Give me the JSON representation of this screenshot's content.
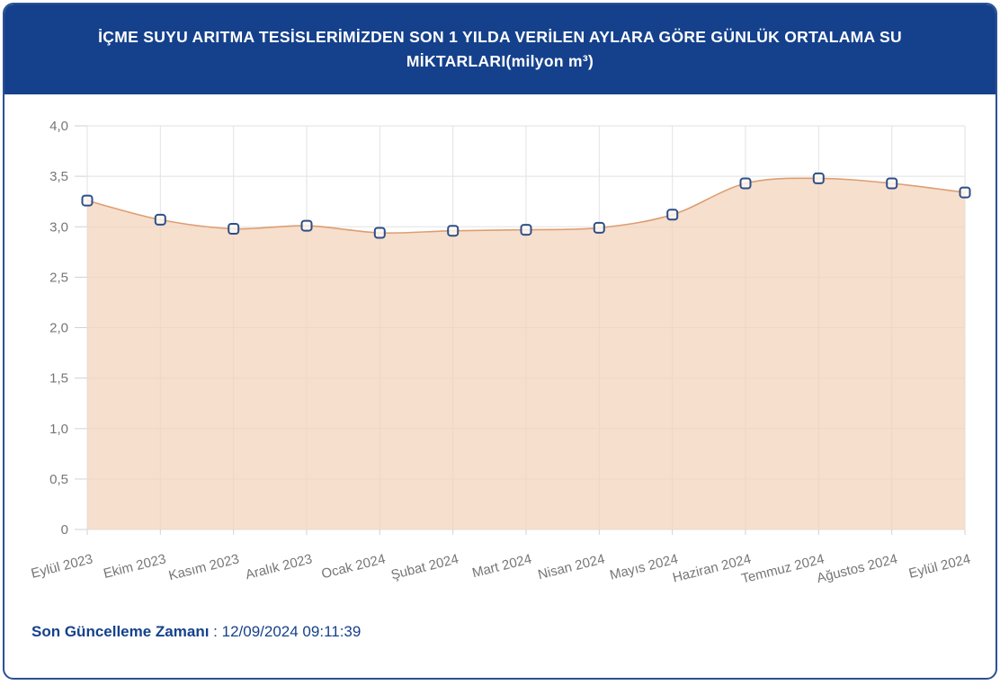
{
  "header": {
    "title": "İÇME SUYU ARITMA TESİSLERİMİZDEN SON 1 YILDA VERİLEN AYLARA GÖRE GÜNLÜK ORTALAMA SU MİKTARLARI(milyon m³)"
  },
  "chart_data": {
    "type": "area",
    "title": "İÇME SUYU ARITMA TESİSLERİMİZDEN SON 1 YILDA VERİLEN AYLARA GÖRE GÜNLÜK ORTALAMA SU MİKTARLARI(milyon m³)",
    "unit": "milyon m³",
    "categories": [
      "Eylül 2023",
      "Ekim 2023",
      "Kasım 2023",
      "Aralık 2023",
      "Ocak 2024",
      "Şubat 2024",
      "Mart 2024",
      "Nisan 2024",
      "Mayıs 2024",
      "Haziran 2024",
      "Temmuz 2024",
      "Ağustos 2024",
      "Eylül 2024"
    ],
    "values": [
      3.26,
      3.07,
      2.98,
      3.01,
      2.94,
      2.96,
      2.97,
      2.99,
      3.12,
      3.43,
      3.48,
      3.43,
      3.34
    ],
    "ylim": [
      0,
      4
    ],
    "y_ticks": [
      {
        "value": 0,
        "label": "0"
      },
      {
        "value": 0.5,
        "label": "0,5"
      },
      {
        "value": 1,
        "label": "1,0"
      },
      {
        "value": 1.5,
        "label": "1,5"
      },
      {
        "value": 2,
        "label": "2,0"
      },
      {
        "value": 2.5,
        "label": "2,5"
      },
      {
        "value": 3,
        "label": "3,0"
      },
      {
        "value": 3.5,
        "label": "3,5"
      },
      {
        "value": 4,
        "label": "4,0"
      }
    ],
    "xlabel": "",
    "ylabel": "",
    "grid": true,
    "legend": "none",
    "marker": "square"
  },
  "footer": {
    "label": "Son Güncelleme Zamanı",
    "separator": " : ",
    "value": "12/09/2024 09:11:39"
  },
  "colors": {
    "header_bg": "#15418c",
    "card_border": "#2c5093",
    "title_text": "#ffffff",
    "grid": "#e2e2e2",
    "axis_text": "#767676",
    "line": "#dd9e72",
    "area_fill": "#f2d3ba",
    "marker_border": "#2d4f88",
    "marker_fill": "#fdf7f1",
    "footer_text": "#15418c"
  }
}
